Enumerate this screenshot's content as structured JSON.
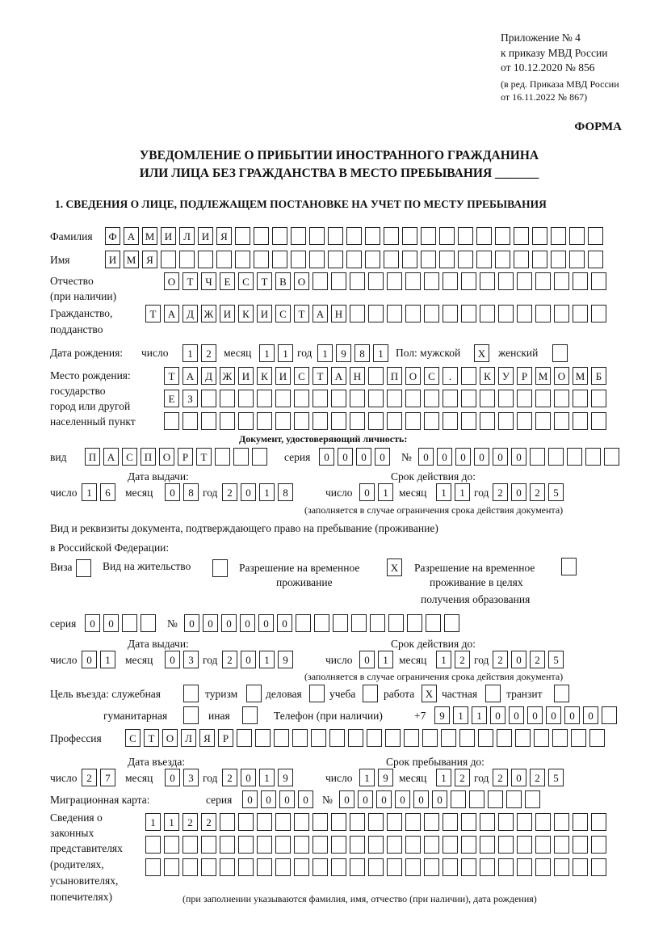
{
  "header": {
    "appendix": "Приложение № 4",
    "order": "к приказу МВД России",
    "order_date": "от 10.12.2020 № 856",
    "edition": "(в ред. Приказа МВД России",
    "edition_date": "от 16.11.2022 № 867)",
    "form": "ФОРМА",
    "title_line1": "УВЕДОМЛЕНИЕ О ПРИБЫТИИ ИНОСТРАННОГО ГРАЖДАНИНА",
    "title_line2": "ИЛИ ЛИЦА БЕЗ ГРАЖДАНСТВА В МЕСТО ПРЕБЫВАНИЯ _______"
  },
  "section1": {
    "heading": "1. СВЕДЕНИЯ О ЛИЦЕ, ПОДЛЕЖАЩЕМ ПОСТАНОВКЕ НА УЧЕТ ПО МЕСТУ ПРЕБЫВАНИЯ",
    "surname_label": "Фамилия",
    "surname": "ФАМИЛИЯ",
    "name_label": "Имя",
    "name": "ИМЯ",
    "patronymic_label": "Отчество",
    "patronymic_label2": "(при наличии)",
    "patronymic": "ОТЧЕСТВО",
    "citizenship_label": "Гражданство,",
    "citizenship_label2": "подданство",
    "citizenship": "ТАДЖИКИСТАН",
    "birth": {
      "label": "Дата рождения:",
      "day_label": "число",
      "day": "12",
      "month_label": "месяц",
      "month": "11",
      "year_label": "год",
      "year": "1981",
      "sex_label": "Пол: мужской",
      "male": "X",
      "female_label": "женский",
      "female": ""
    },
    "birthplace": {
      "label1": "Место рождения:",
      "label2": "государство",
      "label3": "город или другой",
      "label4": "населенный пункт",
      "row1": "ТАДЖИКИСТАН ПОС. КУРМОМБ",
      "row2": "ЕЗ",
      "row3": ""
    },
    "id_doc": {
      "heading": "Документ, удостоверяющий личность:",
      "kind_label": "вид",
      "kind": "ПАСПОРТ",
      "series_label": "серия",
      "series": "0000",
      "number_label": "№",
      "number": "000000",
      "issue_label": "Дата выдачи:",
      "valid_label": "Срок действия до:",
      "day_label": "число",
      "month_label": "месяц",
      "year_label": "год",
      "issue_day": "16",
      "issue_month": "08",
      "issue_year": "2018",
      "valid_day": "01",
      "valid_month": "11",
      "valid_year": "2025",
      "note": "(заполняется в случае ограничения срока действия документа)"
    },
    "stay_doc": {
      "heading1": "Вид и реквизиты документа, подтверждающего право на пребывание (проживание)",
      "heading2": "в Российской Федерации:",
      "visa_label": "Виза",
      "visa": "",
      "residence_label": "Вид на жительство",
      "residence": "",
      "temp_label1": "Разрешение на временное",
      "temp_label2": "проживание",
      "temp": "X",
      "edu_label1": "Разрешение на временное",
      "edu_label2": "проживание в целях",
      "edu_label3": "получения образования",
      "edu": "",
      "series_label": "серия",
      "series": "00",
      "number_label": "№",
      "number": "000000",
      "issue_label": "Дата выдачи:",
      "valid_label": "Срок действия до:",
      "day_label": "число",
      "month_label": "месяц",
      "year_label": "год",
      "issue_day": "01",
      "issue_month": "03",
      "issue_year": "2019",
      "valid_day": "01",
      "valid_month": "12",
      "valid_year": "2025",
      "note": "(заполняется в случае ограничения срока действия документа)"
    },
    "purpose": {
      "label": "Цель въезда: служебная",
      "service": "",
      "tourism_label": "туризм",
      "tourism": "",
      "business_label": "деловая",
      "business": "",
      "study_label": "учеба",
      "study": "",
      "work_label": "работа",
      "work": "X",
      "private_label": "частная",
      "private": "",
      "transit_label": "транзит",
      "transit": "",
      "humanitarian_label": "гуманитарная",
      "humanitarian": "",
      "other_label": "иная",
      "other": ""
    },
    "phone_label": "Телефон (при наличии)",
    "phone_prefix": "+7",
    "phone": "911000000",
    "profession_label": "Профессия",
    "profession": "СТОЛЯР",
    "entry": {
      "entry_label": "Дата въезда:",
      "stay_label": "Срок пребывания до:",
      "day_label": "число",
      "month_label": "месяц",
      "year_label": "год",
      "entry_day": "27",
      "entry_month": "03",
      "entry_year": "2019",
      "stay_day": "19",
      "stay_month": "12",
      "stay_year": "2025"
    },
    "migration": {
      "label": "Миграционная карта:",
      "series_label": "серия",
      "series": "0000",
      "number_label": "№",
      "number": "000000"
    },
    "representatives": {
      "label1": "Сведения о",
      "label2": "законных",
      "label3": "представителях",
      "label4": "(родителях,",
      "label5": "усыновителях,",
      "label6": "попечителях)",
      "row1": "1122",
      "row2": "",
      "row3": "",
      "note": "(при заполнении указываются фамилия, имя, отчество (при наличии), дата рождения)"
    }
  }
}
